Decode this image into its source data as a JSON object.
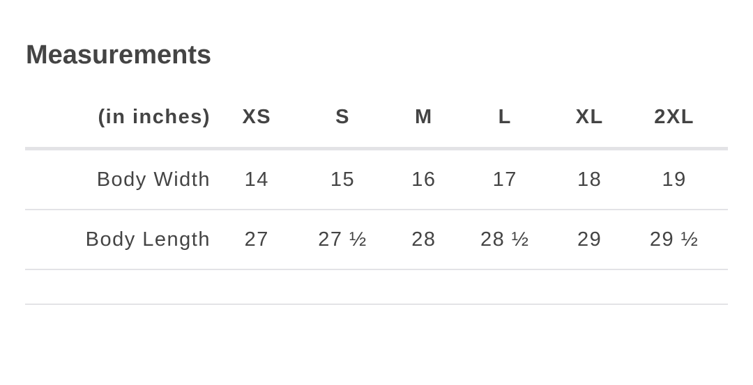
{
  "title": "Measurements",
  "header": [
    "(in inches)",
    "XS",
    "S",
    "M",
    "L",
    "XL",
    "2XL"
  ],
  "rows": [
    [
      "Body Width",
      "14",
      "15",
      "16",
      "17",
      "18",
      "19"
    ],
    [
      "Body Length",
      "27",
      "27 ½",
      "28",
      "28 ½",
      "29",
      "29 ½"
    ]
  ]
}
